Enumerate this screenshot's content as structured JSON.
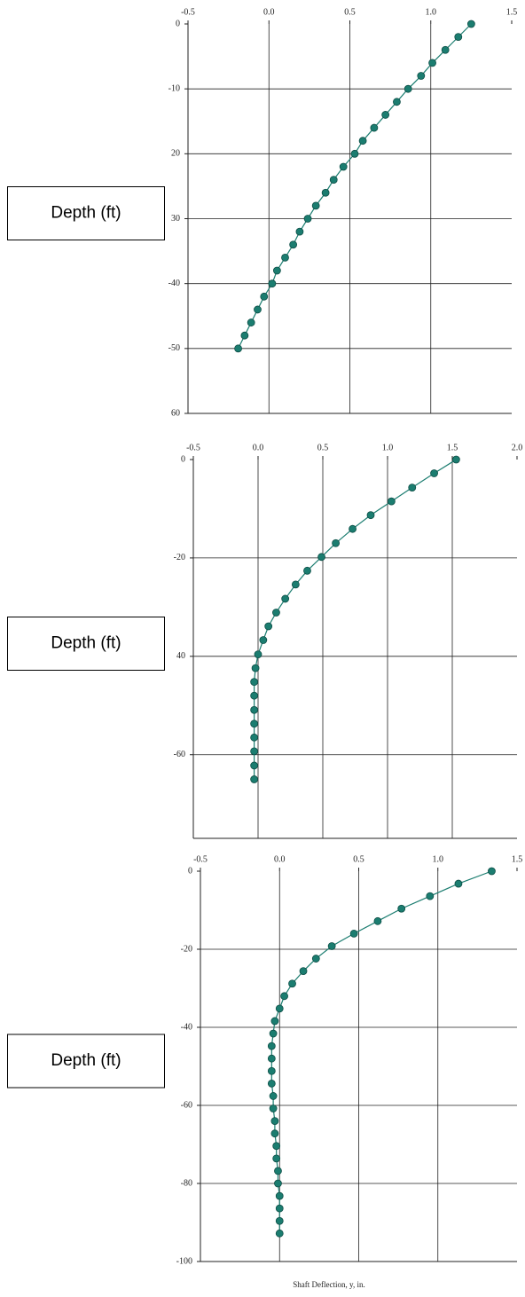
{
  "chart_data": [
    {
      "type": "line",
      "ylabel": "Depth (ft)",
      "color": "#1b7d70",
      "invert_y": true,
      "xlim": [
        -0.5,
        1.5
      ],
      "xticks": [
        -0.5,
        {
          "value": 0,
          "label": "0.0"
        },
        0.5,
        {
          "value": 1,
          "label": "1.0"
        },
        1.5
      ],
      "ylim": [
        0,
        60
      ],
      "yticks": [
        0,
        {
          "value": 10,
          "label": "-10"
        },
        20,
        30,
        {
          "value": 40,
          "label": "-40"
        },
        {
          "value": 50,
          "label": "-50"
        },
        60
      ],
      "grid": true,
      "values": [
        0,
        2,
        4,
        6,
        8,
        10,
        12,
        14,
        16,
        18,
        20,
        22,
        24,
        26,
        28,
        30,
        32,
        34,
        36,
        38,
        40,
        42,
        44,
        46,
        48,
        50
      ],
      "x": [
        1.25,
        1.17,
        1.09,
        1.01,
        0.94,
        0.86,
        0.79,
        0.72,
        0.65,
        0.58,
        0.53,
        0.46,
        0.4,
        0.35,
        0.29,
        0.24,
        0.19,
        0.15,
        0.1,
        0.05,
        0.02,
        -0.03,
        -0.07,
        -0.11,
        -0.15,
        -0.19
      ]
    },
    {
      "type": "line",
      "ylabel": "Depth (ft)",
      "color": "#1b7d70",
      "invert_y": true,
      "xlim": [
        -0.5,
        2.0
      ],
      "xticks": [
        -0.5,
        {
          "value": 0,
          "label": "0.0"
        },
        0.5,
        {
          "value": 1,
          "label": "1.0"
        },
        1.5,
        {
          "value": 2,
          "label": "2.0"
        }
      ],
      "ylim": [
        0,
        77
      ],
      "yticks": [
        0,
        {
          "value": 20,
          "label": "-20"
        },
        40,
        {
          "value": 60,
          "label": "-60"
        }
      ],
      "grid": true,
      "values": [
        0,
        2.8,
        5.7,
        8.5,
        11.3,
        14.1,
        17.0,
        19.8,
        22.6,
        25.4,
        28.3,
        31.1,
        33.9,
        36.7,
        39.6,
        42.4,
        45.2,
        48.0,
        50.9,
        53.7,
        56.5,
        59.3,
        62.2,
        65.0
      ],
      "x": [
        1.53,
        1.36,
        1.19,
        1.03,
        0.87,
        0.73,
        0.6,
        0.49,
        0.38,
        0.29,
        0.21,
        0.14,
        0.08,
        0.04,
        0.0,
        -0.02,
        -0.03,
        -0.03,
        -0.03,
        -0.03,
        -0.03,
        -0.03,
        -0.03,
        -0.03
      ]
    },
    {
      "type": "line",
      "ylabel": "Depth (ft)",
      "xlabel": "Shaft Deflection, y, in.",
      "color": "#1b7d70",
      "invert_y": true,
      "xlim": [
        -0.5,
        1.5
      ],
      "xticks": [
        -0.5,
        {
          "value": 0,
          "label": "0.0"
        },
        0.5,
        {
          "value": 1,
          "label": "1.0"
        },
        1.5
      ],
      "ylim": [
        0,
        100
      ],
      "yticks": [
        0,
        {
          "value": 20,
          "label": "-20"
        },
        {
          "value": 40,
          "label": "-40"
        },
        {
          "value": 60,
          "label": "-60"
        },
        {
          "value": 80,
          "label": "-80"
        },
        {
          "value": 100,
          "label": "-100"
        }
      ],
      "grid": true,
      "values": [
        0,
        3.2,
        6.4,
        9.6,
        12.8,
        16.0,
        19.2,
        22.4,
        25.6,
        28.8,
        32.0,
        35.2,
        38.4,
        41.6,
        44.8,
        48.0,
        51.2,
        54.4,
        57.6,
        60.8,
        64.0,
        67.2,
        70.4,
        73.6,
        76.8,
        80.0,
        83.2,
        86.4,
        89.6,
        92.8
      ],
      "x": [
        1.34,
        1.13,
        0.95,
        0.77,
        0.62,
        0.47,
        0.33,
        0.23,
        0.15,
        0.08,
        0.03,
        0.0,
        -0.03,
        -0.04,
        -0.05,
        -0.05,
        -0.05,
        -0.05,
        -0.04,
        -0.04,
        -0.03,
        -0.03,
        -0.02,
        -0.02,
        -0.01,
        -0.01,
        0.0,
        0.0,
        0.0,
        0.0
      ]
    }
  ]
}
